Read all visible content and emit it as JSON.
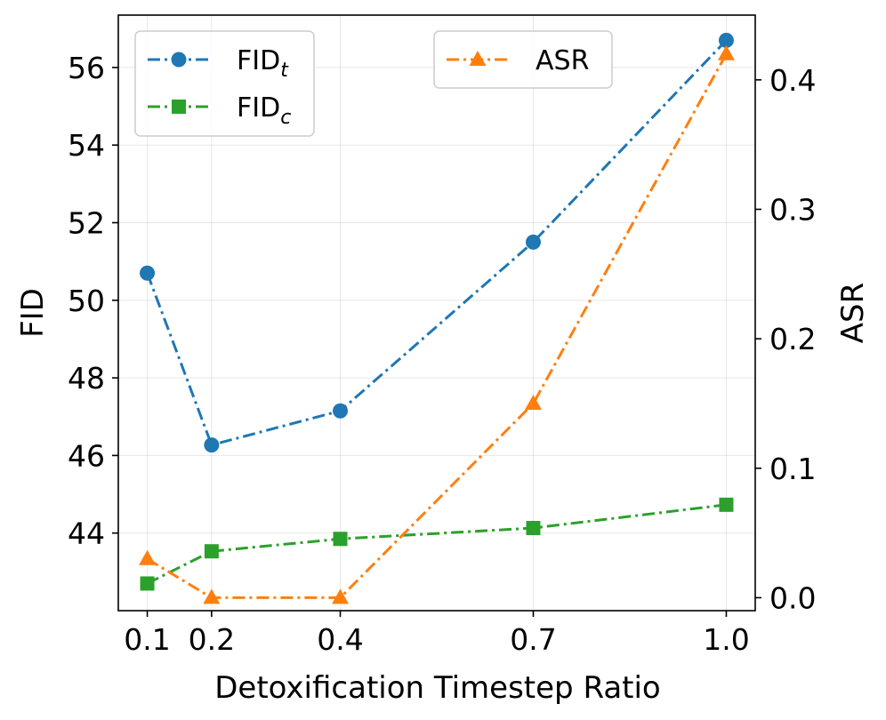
{
  "chart_data": {
    "type": "line",
    "x": [
      0.1,
      0.2,
      0.4,
      0.7,
      1.0
    ],
    "x_tick_labels": [
      "0.1",
      "0.2",
      "0.4",
      "0.7",
      "1.0"
    ],
    "xlabel": "Detoxification Timestep Ratio",
    "xlim": [
      0.055,
      1.045
    ],
    "left_axis": {
      "label": "FID",
      "ylim": [
        42.0,
        57.35
      ],
      "ticks": [
        44,
        46,
        48,
        50,
        52,
        54,
        56
      ],
      "tick_labels": [
        "44",
        "46",
        "48",
        "50",
        "52",
        "54",
        "56"
      ]
    },
    "right_axis": {
      "label": "ASR",
      "ylim": [
        -0.01,
        0.45
      ],
      "ticks": [
        0.0,
        0.1,
        0.2,
        0.3,
        0.4
      ],
      "tick_labels": [
        "0.0",
        "0.1",
        "0.2",
        "0.3",
        "0.4"
      ]
    },
    "grid": true,
    "series": [
      {
        "name": "FID",
        "subscript": "t",
        "axis": "left",
        "color": "#1f77b4",
        "marker": "circle",
        "linestyle": "dashdot",
        "values": [
          50.7,
          46.27,
          47.15,
          51.5,
          56.7
        ]
      },
      {
        "name": "FID",
        "subscript": "c",
        "axis": "left",
        "color": "#2ca02c",
        "marker": "square",
        "linestyle": "dashdot",
        "values": [
          42.7,
          43.53,
          43.85,
          44.13,
          44.73
        ]
      },
      {
        "name": "ASR",
        "subscript": "",
        "axis": "right",
        "color": "#ff7f0e",
        "marker": "triangle",
        "linestyle": "dashdot",
        "values": [
          0.03,
          0.0,
          0.0,
          0.15,
          0.42
        ]
      }
    ],
    "legends": [
      {
        "placement": "top-left",
        "series": [
          0,
          1
        ]
      },
      {
        "placement": "top-center",
        "series": [
          2
        ]
      }
    ]
  }
}
